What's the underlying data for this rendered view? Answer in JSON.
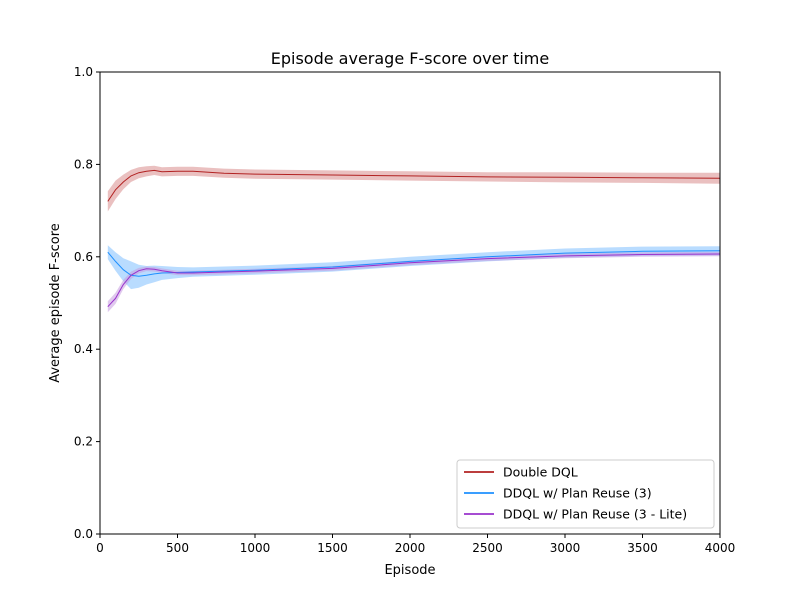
{
  "chart_data": {
    "type": "line",
    "title": "Episode average F-score over time",
    "xlabel": "Episode",
    "ylabel": "Average episode F-score",
    "xlim": [
      0,
      4000
    ],
    "ylim": [
      0.0,
      1.0
    ],
    "xticks": [
      0,
      500,
      1000,
      1500,
      2000,
      2500,
      3000,
      3500,
      4000
    ],
    "yticks": [
      0.0,
      0.2,
      0.4,
      0.6,
      0.8,
      1.0
    ],
    "xtick_labels": [
      "0",
      "500",
      "1000",
      "1500",
      "2000",
      "2500",
      "3000",
      "3500",
      "4000"
    ],
    "ytick_labels": [
      "0.0",
      "0.2",
      "0.4",
      "0.6",
      "0.8",
      "1.0"
    ],
    "grid": false,
    "legend_position": "lower-right",
    "series": [
      {
        "name": "Double DQL",
        "color": "#b22222",
        "band_color": "#d98c8c",
        "x": [
          50,
          100,
          150,
          200,
          250,
          300,
          350,
          400,
          500,
          600,
          800,
          1000,
          1500,
          2000,
          2500,
          3000,
          3500,
          4000
        ],
        "y": [
          0.72,
          0.745,
          0.762,
          0.775,
          0.782,
          0.785,
          0.787,
          0.784,
          0.785,
          0.785,
          0.781,
          0.779,
          0.777,
          0.775,
          0.773,
          0.772,
          0.771,
          0.77
        ],
        "band": [
          0.022,
          0.02,
          0.016,
          0.013,
          0.012,
          0.011,
          0.01,
          0.01,
          0.01,
          0.01,
          0.01,
          0.01,
          0.01,
          0.01,
          0.01,
          0.011,
          0.011,
          0.012
        ]
      },
      {
        "name": "DDQL w/ Plan Reuse (3)",
        "color": "#1e90ff",
        "band_color": "#80bfff",
        "x": [
          50,
          100,
          150,
          200,
          250,
          300,
          350,
          400,
          500,
          600,
          800,
          1000,
          1500,
          2000,
          2500,
          3000,
          3500,
          4000
        ],
        "y": [
          0.61,
          0.59,
          0.572,
          0.56,
          0.558,
          0.56,
          0.563,
          0.565,
          0.566,
          0.567,
          0.569,
          0.571,
          0.578,
          0.59,
          0.6,
          0.608,
          0.612,
          0.613
        ],
        "band": [
          0.015,
          0.02,
          0.025,
          0.03,
          0.025,
          0.02,
          0.018,
          0.015,
          0.012,
          0.01,
          0.01,
          0.01,
          0.01,
          0.01,
          0.01,
          0.01,
          0.01,
          0.01
        ]
      },
      {
        "name": "DDQL w/ Plan Reuse (3 - Lite)",
        "color": "#9932cc",
        "band_color": "#c79ce0",
        "x": [
          50,
          100,
          150,
          200,
          250,
          300,
          350,
          400,
          500,
          600,
          800,
          1000,
          1500,
          2000,
          2500,
          3000,
          3500,
          4000
        ],
        "y": [
          0.492,
          0.51,
          0.54,
          0.56,
          0.57,
          0.574,
          0.573,
          0.57,
          0.565,
          0.565,
          0.567,
          0.569,
          0.575,
          0.587,
          0.596,
          0.602,
          0.605,
          0.606
        ],
        "band": [
          0.012,
          0.012,
          0.01,
          0.008,
          0.006,
          0.005,
          0.005,
          0.005,
          0.005,
          0.005,
          0.005,
          0.005,
          0.005,
          0.005,
          0.005,
          0.005,
          0.005,
          0.005
        ]
      }
    ]
  }
}
